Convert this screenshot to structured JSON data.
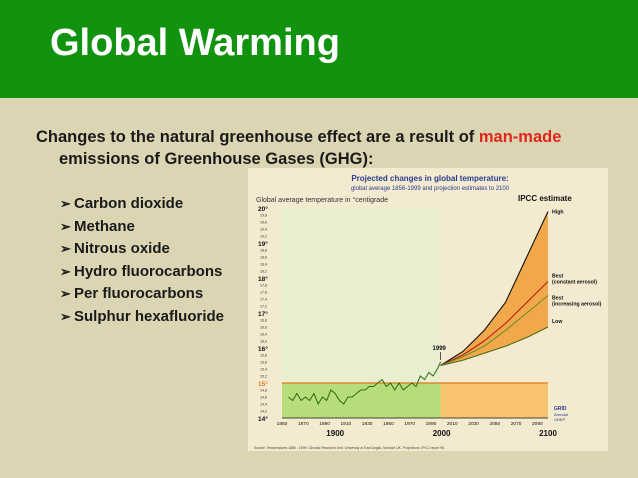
{
  "slide": {
    "title": "Global Warming",
    "intro_part1": "Changes to the natural greenhouse effect are a result of ",
    "intro_highlight": "man-made",
    "intro_part2": "emissions of Greenhouse Gases (GHG):",
    "gases": [
      "Carbon dioxide",
      "Methane",
      "Nitrous oxide",
      "Hydro fluorocarbons",
      "Per fluorocarbons",
      "Sulphur hexafluoride"
    ],
    "bullet_icon": "arrow-right-icon",
    "colors": {
      "header": "#12930f",
      "background": "#dbd5b3",
      "highlight": "#e0261b"
    }
  },
  "chart_data": {
    "type": "line",
    "title": "Projected changes in global temperature:",
    "subtitle": "global average 1856-1999 and projection estimates to 2100",
    "ylabel": "Global average temperature in °centigrade",
    "ipcc_label": "IPCC estimate",
    "marker_label": "1999",
    "source": "Source: Temperatures 1856 - 1999: Climatic Research Unit, University of East Anglia, Norwich UK. Projections: IPCC report 95.",
    "logo_text": [
      "GRID",
      "Arendal",
      "UNEP"
    ],
    "ylim": [
      14,
      20
    ],
    "xlim": [
      1850,
      2100
    ],
    "y_major_ticks": [
      "14°",
      "15°",
      "16°",
      "17°",
      "18°",
      "19°",
      "20°"
    ],
    "y_minor_ticks": [
      "14,2",
      "14,4",
      "14,6",
      "14,8",
      "15,2",
      "15,4",
      "15,6",
      "15,8",
      "16,2",
      "16,4",
      "16,6",
      "16,8",
      "17,2",
      "17,4",
      "17,6",
      "17,8",
      "18,2",
      "18,4",
      "18,6",
      "18,8",
      "19,2",
      "19,4",
      "19,6",
      "19,8"
    ],
    "x_ticks": [
      "1850",
      "1870",
      "1890",
      "1910",
      "1930",
      "1950",
      "1970",
      "1990",
      "2010",
      "2030",
      "2050",
      "2070",
      "2090"
    ],
    "x_big_labels": [
      "1900",
      "2000",
      "2100"
    ],
    "historical": {
      "years": [
        1856,
        1860,
        1864,
        1868,
        1872,
        1876,
        1880,
        1884,
        1888,
        1892,
        1896,
        1900,
        1904,
        1908,
        1912,
        1916,
        1920,
        1924,
        1928,
        1932,
        1936,
        1940,
        1944,
        1948,
        1952,
        1956,
        1960,
        1964,
        1968,
        1972,
        1976,
        1980,
        1984,
        1988,
        1992,
        1996,
        1999
      ],
      "temps": [
        14.6,
        14.5,
        14.7,
        14.5,
        14.6,
        14.5,
        14.7,
        14.4,
        14.6,
        14.5,
        14.8,
        14.7,
        14.5,
        14.4,
        14.6,
        14.6,
        14.7,
        14.8,
        14.8,
        14.9,
        14.9,
        15.0,
        15.1,
        14.9,
        15.0,
        14.8,
        15.0,
        14.8,
        14.9,
        15.0,
        14.9,
        15.2,
        15.1,
        15.3,
        15.2,
        15.4,
        15.6
      ]
    },
    "projection_years": [
      1999,
      2020,
      2040,
      2060,
      2080,
      2100
    ],
    "series": [
      {
        "name": "High",
        "values": [
          15.5,
          15.9,
          16.5,
          17.3,
          18.6,
          19.9
        ]
      },
      {
        "name": "Best (constant aerosol)",
        "values": [
          15.5,
          15.8,
          16.2,
          16.7,
          17.3,
          17.9
        ]
      },
      {
        "name": "Best (increasing aerosol)",
        "values": [
          15.5,
          15.75,
          16.05,
          16.5,
          17.0,
          17.5
        ]
      },
      {
        "name": "Low",
        "values": [
          15.5,
          15.65,
          15.85,
          16.05,
          16.3,
          16.6
        ]
      }
    ],
    "colors": {
      "historical_fill": "#b7dd7a",
      "projection_fill": "#f0a84a",
      "high_line": "#111111",
      "best_constant": "#b51d19",
      "best_increasing": "#6b8f2a",
      "low_line": "#4a6a10",
      "baseline": "#e07a1b",
      "panel_bg": "#f3ead0",
      "title_color": "#2a3b8f"
    },
    "grid": false
  }
}
